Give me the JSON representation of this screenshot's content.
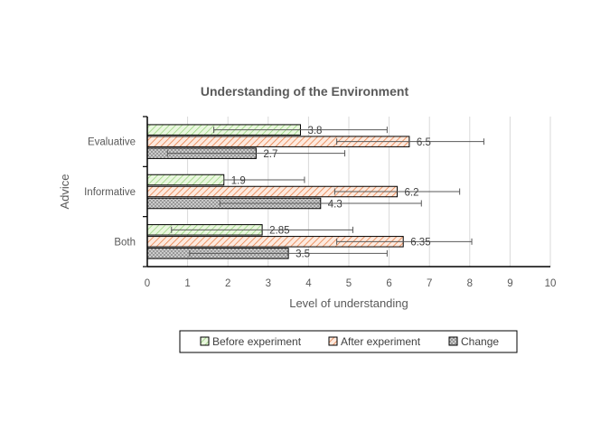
{
  "chart_data": {
    "type": "bar",
    "orientation": "horizontal",
    "title": "Understanding of the Environment",
    "xlabel": "Level of understanding",
    "ylabel": "Advice",
    "categories": [
      "Evaluative",
      "Informative",
      "Both"
    ],
    "xlim": [
      0,
      10
    ],
    "x_ticks": [
      "0",
      "1",
      "2",
      "3",
      "4",
      "5",
      "6",
      "7",
      "8",
      "9",
      "10"
    ],
    "grid": true,
    "legend_position": "bottom",
    "series": [
      {
        "name": "Before experiment",
        "values": [
          3.8,
          1.9,
          2.85
        ],
        "labels": [
          "3.8",
          "1.9",
          "2.85"
        ],
        "error_low": [
          1.65,
          1.9,
          0.6
        ],
        "error_high": [
          5.95,
          3.9,
          5.1
        ],
        "color": "#d9f0c8",
        "pattern": "hatch-light"
      },
      {
        "name": "After experiment",
        "values": [
          6.5,
          6.2,
          6.35
        ],
        "labels": [
          "6.5",
          "6.2",
          "6.35"
        ],
        "error_low": [
          4.7,
          4.65,
          4.7
        ],
        "error_high": [
          8.35,
          7.75,
          8.05
        ],
        "color": "#f2a77e",
        "pattern": "hatch"
      },
      {
        "name": "Change",
        "values": [
          2.7,
          4.3,
          3.5
        ],
        "labels": [
          "2.7",
          "4.3",
          "3.5"
        ],
        "error_low": [
          0.5,
          1.8,
          1.05
        ],
        "error_high": [
          4.9,
          6.8,
          5.95
        ],
        "color": "#bfbfbf",
        "pattern": "crosshatch"
      }
    ]
  }
}
